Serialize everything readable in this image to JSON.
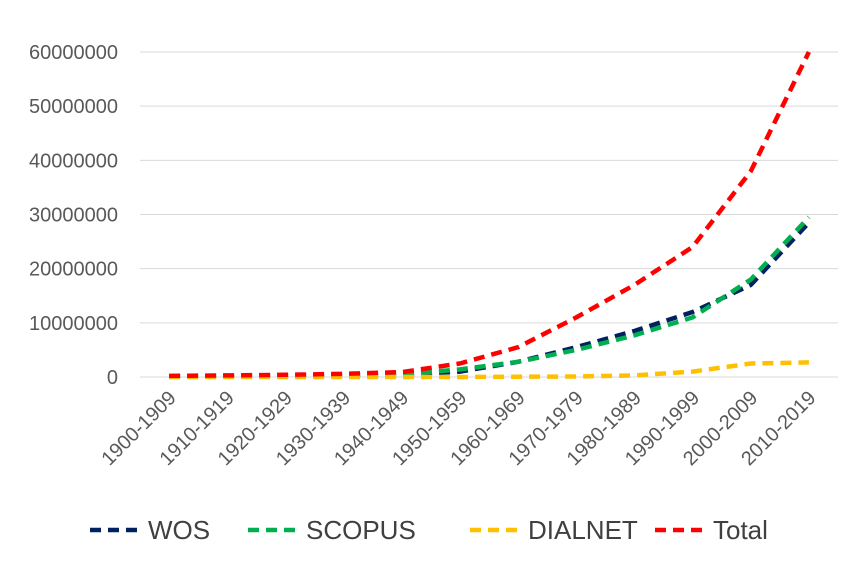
{
  "chart_data": {
    "type": "line",
    "title": "",
    "xlabel": "",
    "ylabel": "",
    "categories": [
      "1900-1909",
      "1910-1919",
      "1920-1929",
      "1930-1939",
      "1940-1949",
      "1950-1959",
      "1960-1969",
      "1970-1979",
      "1980-1989",
      "1990-1999",
      "2000-2009",
      "2010-2019"
    ],
    "ylim": [
      0,
      60000000
    ],
    "yticks": [
      0,
      10000000,
      20000000,
      30000000,
      40000000,
      50000000,
      60000000
    ],
    "ytick_labels": [
      "0",
      "10000000",
      "20000000",
      "30000000",
      "40000000",
      "50000000",
      "60000000"
    ],
    "grid": true,
    "legend_position": "bottom",
    "series": [
      {
        "name": "WOS",
        "color": "#002060",
        "values": [
          150000,
          200000,
          250000,
          300000,
          400000,
          1000000,
          2800000,
          5500000,
          8500000,
          12000000,
          17000000,
          28500000
        ]
      },
      {
        "name": "SCOPUS",
        "color": "#00B050",
        "values": [
          150000,
          200000,
          250000,
          300000,
          450000,
          1400000,
          2800000,
          5000000,
          7700000,
          11000000,
          18000000,
          29500000
        ]
      },
      {
        "name": "DIALNET",
        "color": "#FFC000",
        "values": [
          0,
          0,
          0,
          0,
          0,
          0,
          50000,
          100000,
          300000,
          1000000,
          2500000,
          2700000
        ]
      },
      {
        "name": "Total",
        "color": "#FF0000",
        "values": [
          200000,
          300000,
          400000,
          600000,
          900000,
          2500000,
          5500000,
          11000000,
          17000000,
          24000000,
          38000000,
          60000000
        ]
      }
    ]
  }
}
